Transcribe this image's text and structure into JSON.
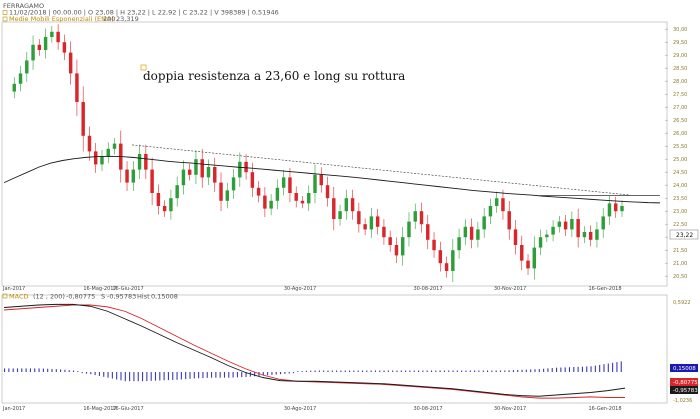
{
  "header": {
    "symbol": "FERRAGAMO",
    "ohlc": "11/02/2018 | 00.00.00 | O 23,08 | H 23,22 | L 22,92 | C 23,22 | V 398389 | 0,51946",
    "ema_label": "Medie Mobili Esponenziali (EMA)",
    "ema_period": "200",
    "ema_value": "23,319",
    "last_price_badge": "23,22"
  },
  "annotation": "doppia resistenza a 23,60 e long su rottura",
  "macd_header": {
    "name": "MACD",
    "params": "(12 , 200)",
    "macd_value": "-0,80775",
    "signal_label": "S",
    "signal_value": "-0,95783",
    "hist_label": "Hist",
    "hist_value": "0,15008"
  },
  "macd_badges": [
    "0,15008",
    "-0,80775",
    "-0,95783"
  ],
  "colors": {
    "up": "#2e9e3a",
    "down": "#d8262a",
    "ema": "#1a1a1a",
    "macd_line": "#1a1a1a",
    "signal_line": "#d8262a",
    "histogram": "#3a3ab8",
    "badge_blue": "#1a1ab0",
    "badge_red": "#d8262a",
    "badge_dark": "#1a1a1a",
    "axis_text": "#8a7a30"
  },
  "chart_data": {
    "type": "candlestick",
    "y_axis": {
      "ticks": [
        "20,50",
        "21,00",
        "21,50",
        "22,00",
        "22,50",
        "23,00",
        "23,50",
        "24,00",
        "24,50",
        "25,00",
        "25,50",
        "26,00",
        "26,50",
        "27,00",
        "27,50",
        "28,00",
        "28,50",
        "29,00",
        "29,50",
        "30,00"
      ],
      "range": [
        20.2,
        30.2
      ]
    },
    "x_axis": {
      "ticks": [
        "Jan-2017",
        "16-Mag-2017",
        "16-Giu-2017",
        "30-Ago-2017",
        "30-08-2017",
        "30-Nov-2017",
        "16-Gen-2018"
      ]
    },
    "price_sequence": [
      27.6,
      27.9,
      28.3,
      28.8,
      29.4,
      29.2,
      29.7,
      29.9,
      29.5,
      29.1,
      28.3,
      27.2,
      25.9,
      25.3,
      24.8,
      25.1,
      25.4,
      25.6,
      24.6,
      24.1,
      24.6,
      25.2,
      24.6,
      23.7,
      23.2,
      23.0,
      23.5,
      24.0,
      24.6,
      24.4,
      25.0,
      24.3,
      24.7,
      24.1,
      23.4,
      23.8,
      24.3,
      24.9,
      24.5,
      23.9,
      23.6,
      23.1,
      23.4,
      23.9,
      24.3,
      23.7,
      23.4,
      23.3,
      23.7,
      24.4,
      24.0,
      23.5,
      22.7,
      23.0,
      23.5,
      23.0,
      22.5,
      22.3,
      22.8,
      22.4,
      22.0,
      21.7,
      21.3,
      22.0,
      22.6,
      23.0,
      22.5,
      21.9,
      21.5,
      21.0,
      20.7,
      21.5,
      22.0,
      22.4,
      21.9,
      22.3,
      22.8,
      23.2,
      23.5,
      23.0,
      22.3,
      21.7,
      21.1,
      20.8,
      21.6,
      22.0,
      22.1,
      22.4,
      22.6,
      22.3,
      22.7,
      22.0,
      22.2,
      21.9,
      22.3,
      22.8,
      23.3,
      23.0,
      23.2
    ],
    "ema200": [
      24.1,
      24.3,
      24.5,
      24.7,
      24.85,
      24.95,
      25.02,
      25.07,
      25.1,
      25.11,
      25.1,
      25.07,
      25.02,
      24.97,
      24.92,
      24.88,
      24.85,
      24.81,
      24.77,
      24.73,
      24.69,
      24.66,
      24.62,
      24.58,
      24.54,
      24.5,
      24.46,
      24.42,
      24.38,
      24.34,
      24.3,
      24.25,
      24.2,
      24.15,
      24.1,
      24.05,
      24.0,
      23.95,
      23.9,
      23.85,
      23.8,
      23.76,
      23.72,
      23.68,
      23.65,
      23.62,
      23.58,
      23.55,
      23.52,
      23.49,
      23.46,
      23.43,
      23.4,
      23.37,
      23.35,
      23.33,
      23.32
    ],
    "resistance_level": 23.6,
    "macd": {
      "range": [
        -1.0,
        0.6
      ],
      "macd_line": [
        0.48,
        0.5,
        0.52,
        0.53,
        0.53,
        0.5,
        0.42,
        0.3,
        0.18,
        0.05,
        -0.08,
        -0.2,
        -0.32,
        -0.45,
        -0.56,
        -0.64,
        -0.69,
        -0.7,
        -0.7,
        -0.71,
        -0.72,
        -0.73,
        -0.74,
        -0.76,
        -0.78,
        -0.8,
        -0.82,
        -0.85,
        -0.88,
        -0.91,
        -0.93,
        -0.94,
        -0.92,
        -0.9,
        -0.88,
        -0.85,
        -0.81
      ],
      "signal_line": [
        0.44,
        0.46,
        0.48,
        0.5,
        0.52,
        0.52,
        0.49,
        0.42,
        0.3,
        0.16,
        0.02,
        -0.12,
        -0.25,
        -0.38,
        -0.5,
        -0.6,
        -0.67,
        -0.7,
        -0.71,
        -0.72,
        -0.73,
        -0.74,
        -0.75,
        -0.77,
        -0.79,
        -0.81,
        -0.83,
        -0.86,
        -0.89,
        -0.92,
        -0.95,
        -0.97,
        -0.97,
        -0.96,
        -0.95,
        -0.96,
        -0.96
      ],
      "histogram": [
        0.04,
        0.04,
        0.04,
        0.03,
        0.01,
        -0.02,
        -0.07,
        -0.12,
        -0.12,
        -0.11,
        -0.1,
        -0.08,
        -0.07,
        -0.07,
        -0.06,
        -0.04,
        -0.02,
        0.0,
        0.01,
        0.01,
        0.01,
        0.01,
        0.01,
        0.01,
        0.01,
        0.01,
        0.01,
        0.01,
        0.01,
        0.01,
        0.02,
        0.03,
        0.05,
        0.06,
        0.07,
        0.11,
        0.15
      ]
    },
    "macd_axis_ticks": [
      "0,5922",
      "-1,0236"
    ]
  }
}
